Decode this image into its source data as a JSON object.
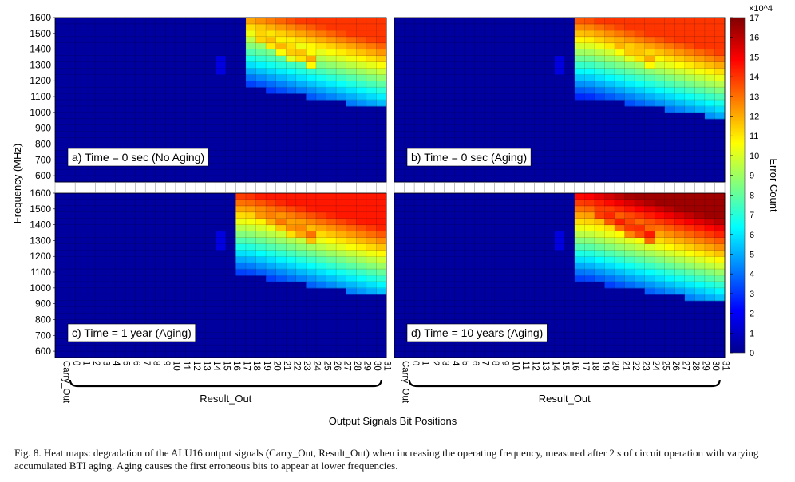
{
  "chart_data": {
    "type": "heatmap",
    "xlabel": "Output Signals Bit Positions",
    "ylabel": "Frequency (MHz)",
    "x_tick_labels": [
      "Carry_Out",
      "0",
      "1",
      "2",
      "3",
      "4",
      "5",
      "6",
      "7",
      "8",
      "9",
      "10",
      "11",
      "12",
      "13",
      "14",
      "15",
      "16",
      "17",
      "18",
      "19",
      "20",
      "21",
      "22",
      "23",
      "24",
      "25",
      "26",
      "27",
      "28",
      "29",
      "30",
      "31"
    ],
    "bracket_label": "Result_Out",
    "y_ticks": [
      600,
      700,
      800,
      900,
      1000,
      1100,
      1200,
      1300,
      1400,
      1500,
      1600
    ],
    "ylim": [
      560,
      1600
    ],
    "colorbar": {
      "label": "Error Count",
      "exponent": "×10^4",
      "ticks": [
        0,
        1,
        2,
        3,
        4,
        5,
        6,
        7,
        8,
        9,
        10,
        11,
        12,
        13,
        14,
        15,
        16,
        17
      ],
      "range": [
        0,
        17
      ],
      "colormap": "jet"
    },
    "panels": [
      {
        "label": "a) Time = 0 sec  (No Aging)",
        "onset_bit": 18,
        "onset_freq": 1180,
        "max_value": 14,
        "ridge_value": 12
      },
      {
        "label": "b) Time = 0 sec  (Aging)",
        "onset_bit": 17,
        "onset_freq": 1120,
        "max_value": 14,
        "ridge_value": 12
      },
      {
        "label": "c) Time = 1 year  (Aging)",
        "onset_bit": 17,
        "onset_freq": 1100,
        "max_value": 14.5,
        "ridge_value": 13
      },
      {
        "label": "d) Time = 10 years  (Aging)",
        "onset_bit": 17,
        "onset_freq": 1060,
        "max_value": 16.5,
        "ridge_value": 14.5
      }
    ]
  },
  "caption": "Fig. 8.   Heat maps: degradation of the ALU16 output signals (Carry_Out, Result_Out) when increasing the operating frequency, measured after 2 s of circuit operation with varying accumulated BTI aging. Aging causes the first erroneous bits to appear at lower frequencies."
}
